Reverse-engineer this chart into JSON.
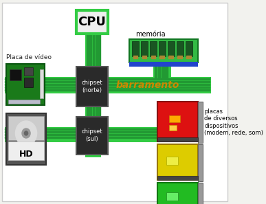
{
  "bg_color": "#f2f2ee",
  "white_bg": "#ffffff",
  "green_bus": "#33cc44",
  "green_bus_dark": "#229933",
  "green_bus_line": "#117722",
  "chipset_color": "#2a2a2a",
  "chipset_text_color": "#ffffff",
  "cpu_box_color": "#eeeeee",
  "cpu_border_color": "#33cc44",
  "barramento_text": "barramento",
  "barramento_color": "#cc8800",
  "cpu_text": "CPU",
  "chipset_norte_text": "chipset\n(norte)",
  "chipset_sul_text": "chipset\n(sul)",
  "memoria_label": "memória",
  "placa_video_label": "Placa de vídeo",
  "hd_label": "HD",
  "placas_label": "placas\nde diversos\ndispositivos\n(modem, rede, som)",
  "memory_green": "#33bb44",
  "memory_dark": "#1a5522",
  "memory_bar_color": "#2244cc",
  "red_card_color": "#dd1111",
  "yellow_card_color": "#ddcc00",
  "green_card_color": "#22bb22",
  "card_connector_color": "#999999",
  "video_card_green": "#1a7a1a",
  "video_chip_dark": "#111111",
  "video_connector_white": "#dddddd",
  "hd_outer": "#555555",
  "hd_inner": "#cccccc",
  "hd_label_area": "#eeeeee"
}
